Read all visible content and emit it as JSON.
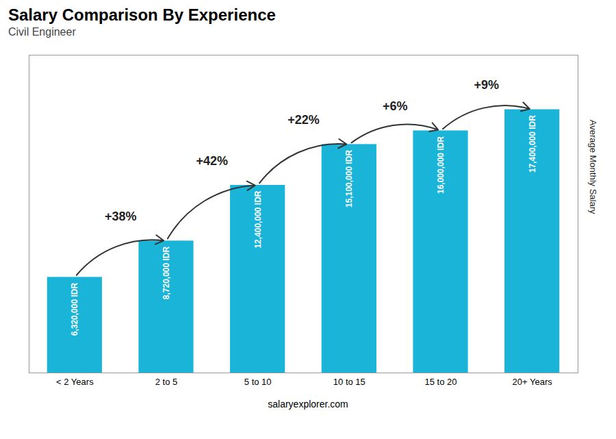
{
  "chart_data": {
    "type": "bar",
    "title": "Salary Comparison By Experience",
    "subtitle": "Civil Engineer",
    "ylabel": "Average Monthly Salary",
    "caption": "salaryexplorer.com",
    "categories": [
      "< 2 Years",
      "2 to 5",
      "5 to 10",
      "10 to 15",
      "15 to 20",
      "20+ Years"
    ],
    "values": [
      6320000,
      8720000,
      12400000,
      15100000,
      16000000,
      17400000
    ],
    "value_labels": [
      "6,320,000 IDR",
      "8,720,000 IDR",
      "12,400,000 IDR",
      "15,100,000 IDR",
      "16,000,000 IDR",
      "17,400,000 IDR"
    ],
    "data_labels": true,
    "color": "#1ab4d8",
    "ylim": [
      0,
      21000000
    ],
    "tick_labels": "x",
    "grid": false,
    "annotations": [
      {
        "from": "< 2 Years",
        "to": "2 to 5",
        "text": "+38%"
      },
      {
        "from": "2 to 5",
        "to": "5 to 10",
        "text": "+42%"
      },
      {
        "from": "5 to 10",
        "to": "10 to 15",
        "text": "+22%"
      },
      {
        "from": "10 to 15",
        "to": "15 to 20",
        "text": "+6%"
      },
      {
        "from": "15 to 20",
        "to": "20+ Years",
        "text": "+9%"
      }
    ]
  }
}
